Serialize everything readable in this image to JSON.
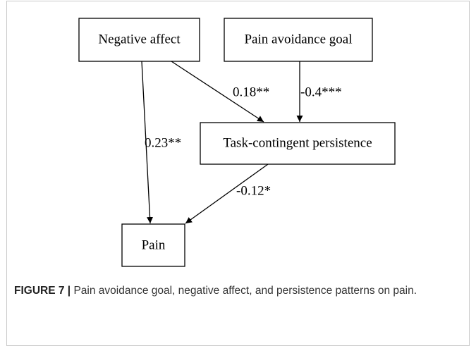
{
  "nodes": [
    {
      "label": "Negative affect"
    },
    {
      "label": "Pain avoidance goal"
    },
    {
      "label": "Task-contingent persistence"
    },
    {
      "label": "Pain"
    }
  ],
  "edges": [
    {
      "label": "0.23**"
    },
    {
      "label": "0.18**"
    },
    {
      "label": "-0.4***"
    },
    {
      "label": "-0.12*"
    }
  ],
  "caption": {
    "label": "FIGURE 7 |",
    "text": "Pain avoidance goal, negative affect, and persistence patterns on pain."
  }
}
